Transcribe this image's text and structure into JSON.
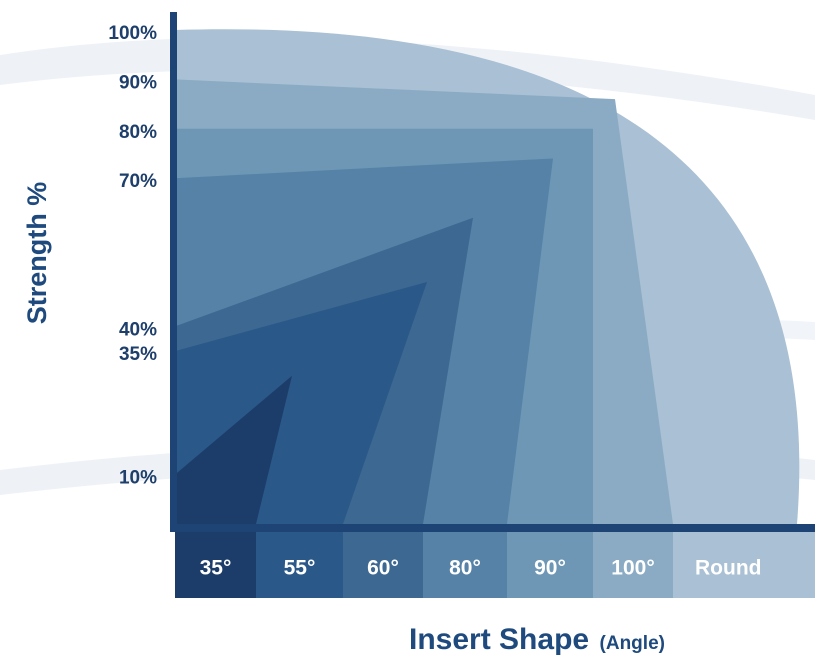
{
  "chart_data": {
    "type": "area",
    "categories": [
      "35°",
      "55°",
      "60°",
      "80°",
      "90°",
      "100°",
      "Round"
    ],
    "category_colors": [
      "#1c3d69",
      "#2a5888",
      "#3c6892",
      "#5582a6",
      "#6e97b5",
      "#8aabc3",
      "#aac0d4"
    ],
    "values": [
      10,
      35,
      40,
      70,
      80,
      90,
      100
    ],
    "y_tick_labels": [
      "100%",
      "90%",
      "80%",
      "70%",
      "40%",
      "35%",
      "10%"
    ],
    "y_ticks": [
      100,
      90,
      80,
      70,
      40,
      35,
      10
    ],
    "ylim": [
      0,
      100
    ],
    "ylabel": "Strength %",
    "xlabel": "Insert Shape",
    "xlabel_suffix": "(Angle)",
    "axis_color": "#1e4475",
    "grid": false,
    "legend": "none"
  }
}
